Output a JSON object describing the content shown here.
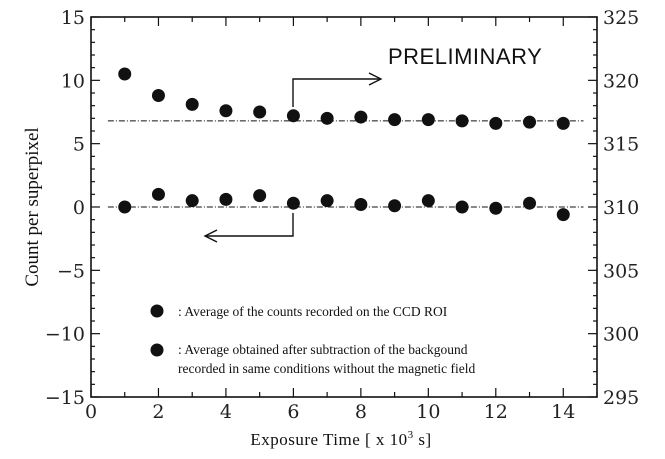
{
  "chart_data": {
    "type": "scatter",
    "xlabel": "Exposure Time [ x 10",
    "xlabel_sup": "3",
    "xlabel_end": " s]",
    "ylabel": "Count per superpixel",
    "xlim": [
      0,
      15
    ],
    "ylim_left": [
      -15,
      15
    ],
    "ylim_right": [
      295,
      325
    ],
    "x_ticks": [
      "0",
      "2",
      "4",
      "6",
      "8",
      "10",
      "12",
      "14"
    ],
    "y_ticks_left": [
      "−15",
      "−10",
      "−5",
      "0",
      "5",
      "10",
      "15"
    ],
    "y_ticks_right": [
      "295",
      "300",
      "305",
      "310",
      "315",
      "320",
      "325"
    ],
    "annotation": "PRELIMINARY",
    "legend": [
      {
        "lines": [
          ": Average of the counts recorded on the CCD ROI"
        ]
      },
      {
        "lines": [
          ": Average obtained after subtraction of the backgound",
          "recorded in same conditions without the magnetic field"
        ]
      }
    ],
    "series": [
      {
        "axis": "right",
        "x": [
          1,
          2,
          3,
          4,
          5,
          6,
          7,
          8,
          9,
          10,
          11,
          12,
          13,
          14
        ],
        "values": [
          320.5,
          318.8,
          318.1,
          317.6,
          317.5,
          317.2,
          317.0,
          317.1,
          316.9,
          316.9,
          316.8,
          316.6,
          316.7,
          316.6
        ],
        "reference_line": 316.8
      },
      {
        "axis": "left",
        "x": [
          1,
          2,
          3,
          4,
          5,
          6,
          7,
          8,
          9,
          10,
          11,
          12,
          13,
          14
        ],
        "values": [
          0.0,
          1.0,
          0.5,
          0.6,
          0.9,
          0.3,
          0.5,
          0.2,
          0.1,
          0.5,
          0.0,
          -0.1,
          0.3,
          -0.6
        ],
        "reference_line": 0.0
      }
    ],
    "grid": false,
    "color": "#111111"
  }
}
